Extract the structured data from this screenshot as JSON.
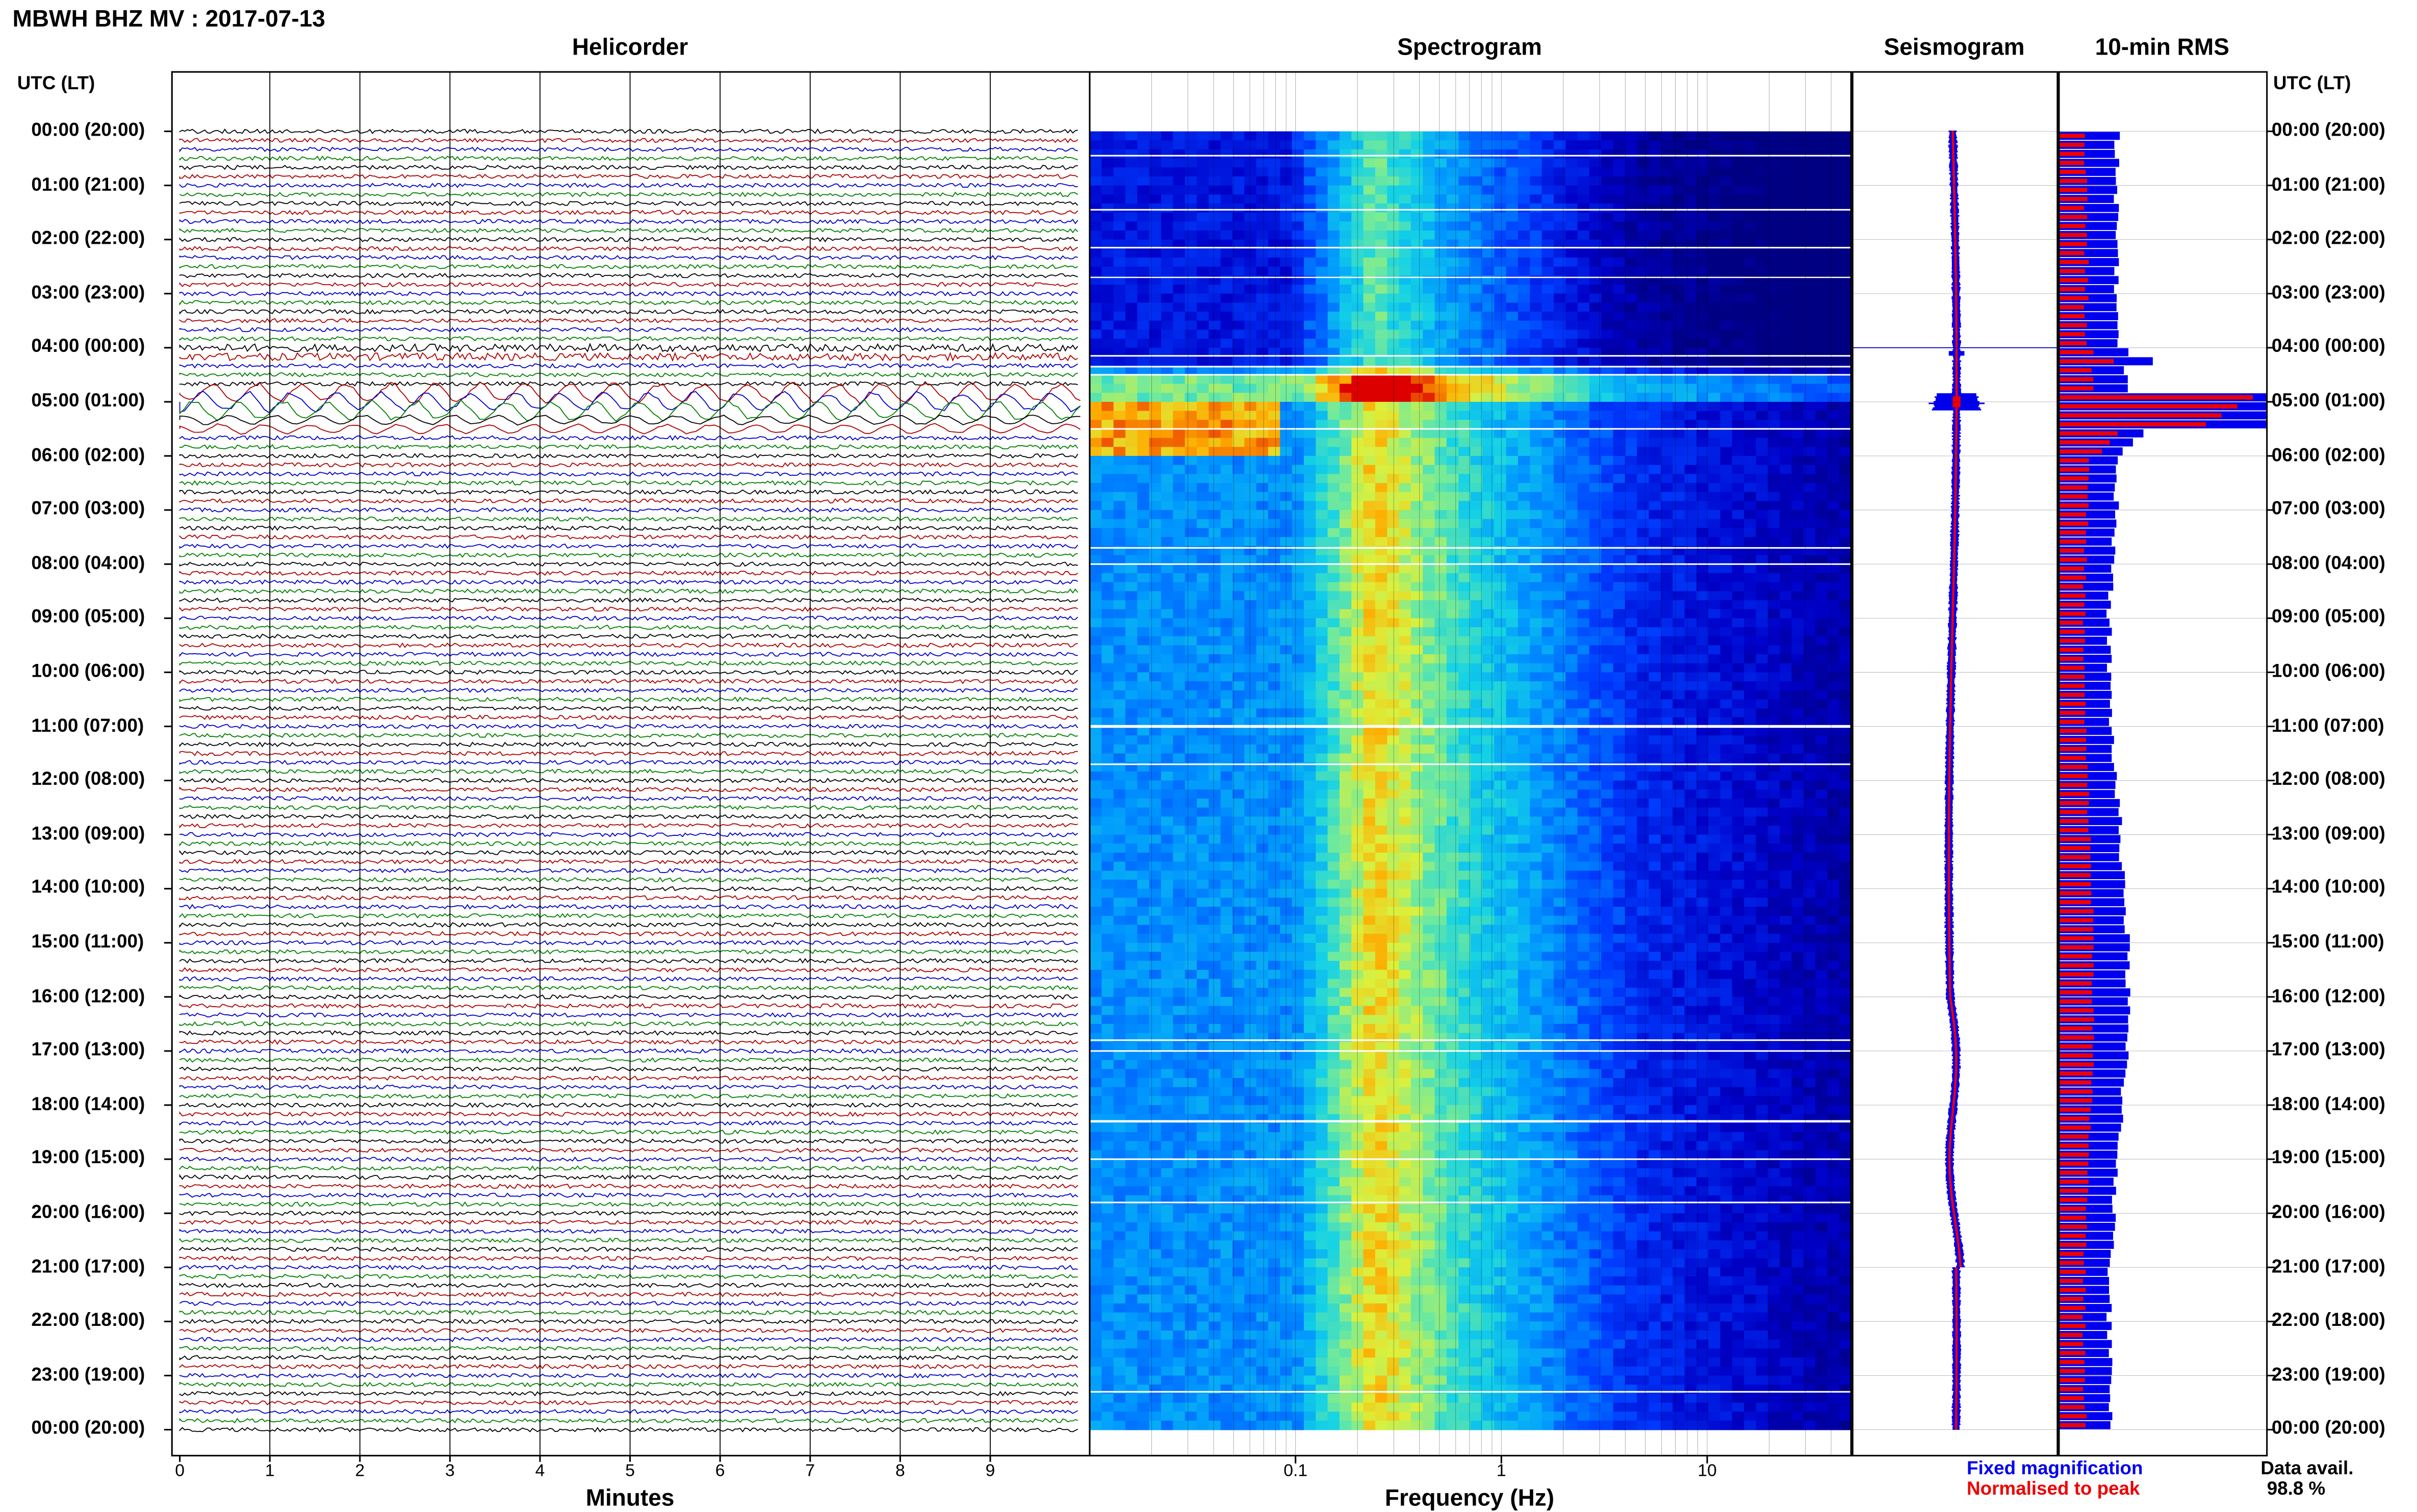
{
  "title": "MBWH BHZ MV : 2017-07-13",
  "panels": {
    "helicorder": "Helicorder",
    "spectrogram": "Spectrogram",
    "seismogram": "Seismogram",
    "rms": "10-min RMS"
  },
  "axis_header_left": "UTC (LT)",
  "axis_header_right": "UTC (LT)",
  "time_labels": [
    "00:00 (20:00)",
    "01:00 (21:00)",
    "02:00 (22:00)",
    "03:00 (23:00)",
    "04:00 (00:00)",
    "05:00 (01:00)",
    "06:00 (02:00)",
    "07:00 (03:00)",
    "08:00 (04:00)",
    "09:00 (05:00)",
    "10:00 (06:00)",
    "11:00 (07:00)",
    "12:00 (08:00)",
    "13:00 (09:00)",
    "14:00 (10:00)",
    "15:00 (11:00)",
    "16:00 (12:00)",
    "17:00 (13:00)",
    "18:00 (14:00)",
    "19:00 (15:00)",
    "20:00 (16:00)",
    "21:00 (17:00)",
    "22:00 (18:00)",
    "23:00 (19:00)",
    "00:00 (20:00)"
  ],
  "helicorder_xticks": [
    "0",
    "1",
    "2",
    "3",
    "4",
    "5",
    "6",
    "7",
    "8",
    "9"
  ],
  "helicorder_xlabel": "Minutes",
  "spectrogram_xticks": [
    "0.1",
    "1",
    "10"
  ],
  "spectrogram_xlabel": "Frequency (Hz)",
  "legend": {
    "fixed": "Fixed magnification",
    "normalised": "Normalised to peak",
    "fixed_color": "#0000ee",
    "normalised_color": "#ee0000"
  },
  "data_avail_label": "Data avail.",
  "data_avail_value": "98.8 %",
  "trace_colors": [
    "#000000",
    "#b00000",
    "#0000cc",
    "#008000"
  ],
  "chart_data": {
    "type": "heatmap",
    "title": "MBWH BHZ MV : 2017-07-13",
    "helicorder": {
      "xlabel": "Minutes",
      "xlim": [
        0,
        10
      ],
      "rows_per_hour": 6,
      "event_hours_utc": [
        4,
        5
      ]
    },
    "spectrogram": {
      "xlabel": "Frequency (Hz)",
      "xscale": "log",
      "xlim": [
        0.01,
        50
      ],
      "event_hour_utc": 5
    },
    "rms_10min": {
      "series": [
        {
          "name": "Fixed magnification",
          "color": "#0000ee"
        },
        {
          "name": "Normalised to peak",
          "color": "#ee0000"
        }
      ],
      "peak_hour_utc": 5
    },
    "data_availability_percent": 98.8
  }
}
